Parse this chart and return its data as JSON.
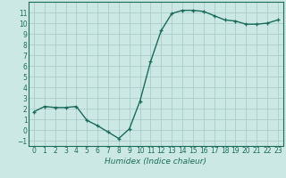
{
  "x": [
    0,
    1,
    2,
    3,
    4,
    5,
    6,
    7,
    8,
    9,
    10,
    11,
    12,
    13,
    14,
    15,
    16,
    17,
    18,
    19,
    20,
    21,
    22,
    23
  ],
  "y": [
    1.7,
    2.2,
    2.1,
    2.1,
    2.2,
    0.9,
    0.4,
    -0.2,
    -0.8,
    0.1,
    2.7,
    6.4,
    9.3,
    10.9,
    11.2,
    11.2,
    11.1,
    10.7,
    10.3,
    10.2,
    9.9,
    9.9,
    10.0,
    10.3
  ],
  "line_color": "#1a6b5a",
  "marker": "+",
  "marker_size": 3,
  "line_width": 1.0,
  "xlabel": "Humidex (Indice chaleur)",
  "xlim": [
    -0.5,
    23.5
  ],
  "ylim": [
    -1.5,
    12.0
  ],
  "yticks": [
    -1,
    0,
    1,
    2,
    3,
    4,
    5,
    6,
    7,
    8,
    9,
    10,
    11
  ],
  "xticks": [
    0,
    1,
    2,
    3,
    4,
    5,
    6,
    7,
    8,
    9,
    10,
    11,
    12,
    13,
    14,
    15,
    16,
    17,
    18,
    19,
    20,
    21,
    22,
    23
  ],
  "bg_color": "#cce8e4",
  "grid_color": "#aaccca",
  "tick_label_fontsize": 5.5,
  "xlabel_fontsize": 6.5
}
